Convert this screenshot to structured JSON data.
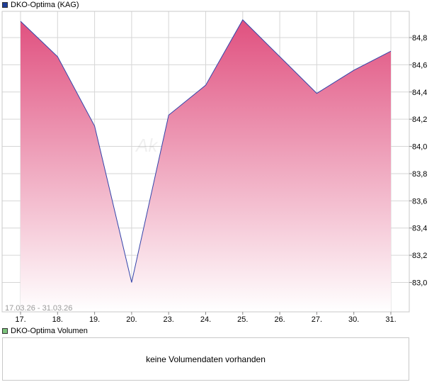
{
  "price_legend": {
    "label": "DKO-Optima (KAG)",
    "color": "#1f3f9a"
  },
  "volume_legend": {
    "label": "DKO-Optima Volumen",
    "color": "#7cc47c"
  },
  "watermark": "Ak",
  "date_range": "17.03.26 - 31.03.26",
  "volume_message": "keine Volumendaten vorhanden",
  "colors": {
    "line": "#3344aa",
    "fill_top": "#e0507f",
    "fill_bottom": "#ffffff",
    "grid": "#d6d6d6"
  },
  "chart_data": {
    "type": "area",
    "title": "DKO-Optima (KAG)",
    "x": [
      "17.",
      "18.",
      "19.",
      "20.",
      "23.",
      "24.",
      "25.",
      "26.",
      "27.",
      "30.",
      "31."
    ],
    "series": [
      {
        "name": "DKO-Optima (KAG)",
        "values": [
          84.92,
          84.66,
          84.15,
          83.0,
          84.23,
          84.45,
          84.93,
          84.66,
          84.39,
          84.56,
          84.7
        ]
      }
    ],
    "ylim": [
      82.8,
      85.0
    ],
    "yticks": [
      83.0,
      83.2,
      83.4,
      83.6,
      83.8,
      84.0,
      84.2,
      84.4,
      84.6,
      84.8
    ],
    "ytick_labels": [
      "83,0",
      "83,2",
      "83,4",
      "83,6",
      "83,8",
      "84,0",
      "84,2",
      "84,4",
      "84,6",
      "84,8"
    ],
    "grid": true,
    "y_axis_position": "right"
  }
}
